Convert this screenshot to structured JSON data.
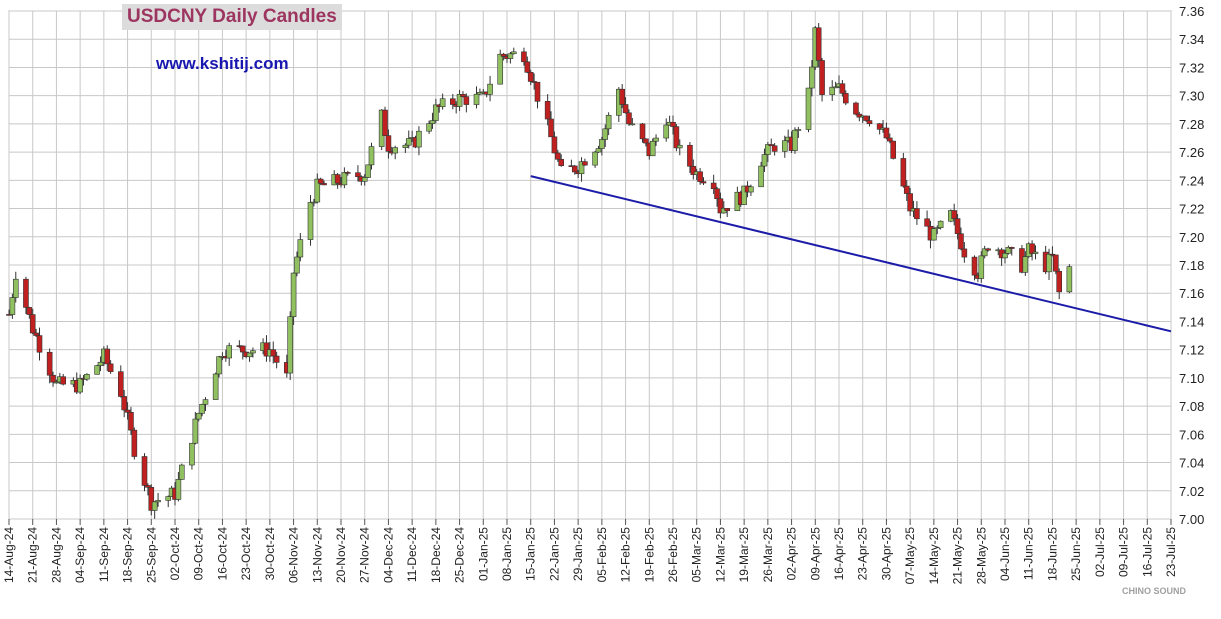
{
  "chart_data": {
    "type": "candlestick",
    "title": "USDCNY Daily Candles",
    "source_text": "www.kshitij.com",
    "ylim": [
      7.0,
      7.36
    ],
    "y_ticks": [
      "7.36",
      "7.34",
      "7.32",
      "7.30",
      "7.28",
      "7.26",
      "7.24",
      "7.22",
      "7.20",
      "7.18",
      "7.16",
      "7.14",
      "7.12",
      "7.10",
      "7.08",
      "7.06",
      "7.04",
      "7.02",
      "7.00"
    ],
    "x_ticks": [
      "14-Aug-24",
      "21-Aug-24",
      "28-Aug-24",
      "04-Sep-24",
      "11-Sep-24",
      "18-Sep-24",
      "25-Sep-24",
      "02-Oct-24",
      "09-Oct-24",
      "16-Oct-24",
      "23-Oct-24",
      "30-Oct-24",
      "06-Nov-24",
      "13-Nov-24",
      "20-Nov-24",
      "27-Nov-24",
      "04-Dec-24",
      "11-Dec-24",
      "18-Dec-24",
      "25-Dec-24",
      "01-Jan-25",
      "08-Jan-25",
      "15-Jan-25",
      "22-Jan-25",
      "29-Jan-25",
      "05-Feb-25",
      "12-Feb-25",
      "19-Feb-25",
      "26-Feb-25",
      "05-Mar-25",
      "12-Mar-25",
      "19-Mar-25",
      "26-Mar-25",
      "02-Apr-25",
      "09-Apr-25",
      "16-Apr-25",
      "23-Apr-25",
      "30-Apr-25",
      "07-May-25",
      "14-May-25",
      "21-May-25",
      "28-May-25",
      "04-Jun-25",
      "11-Jun-25",
      "18-Jun-25",
      "25-Jun-25",
      "02-Jul-25",
      "09-Jul-25",
      "16-Jul-25",
      "23-Jul-25"
    ],
    "grid": true,
    "colors": {
      "up": "#90c060",
      "down": "#c02020",
      "trendline": "#1c1ca8",
      "grid": "#c8c8c8"
    },
    "trendline": {
      "start": {
        "date": "15-Jan-25",
        "value": 7.243
      },
      "end": {
        "date": "23-Jul-25",
        "value": 7.133
      }
    },
    "approx_close_path": [
      {
        "date": "14-Aug-24",
        "close": 7.145
      },
      {
        "date": "16-Aug-24",
        "close": 7.175
      },
      {
        "date": "21-Aug-24",
        "close": 7.135
      },
      {
        "date": "28-Aug-24",
        "close": 7.095
      },
      {
        "date": "04-Sep-24",
        "close": 7.095
      },
      {
        "date": "11-Sep-24",
        "close": 7.115
      },
      {
        "date": "16-Sep-24",
        "close": 7.09
      },
      {
        "date": "20-Sep-24",
        "close": 7.05
      },
      {
        "date": "25-Sep-24",
        "close": 7.012
      },
      {
        "date": "02-Oct-24",
        "close": 7.018
      },
      {
        "date": "09-Oct-24",
        "close": 7.075
      },
      {
        "date": "16-Oct-24",
        "close": 7.12
      },
      {
        "date": "23-Oct-24",
        "close": 7.12
      },
      {
        "date": "30-Oct-24",
        "close": 7.12
      },
      {
        "date": "04-Nov-24",
        "close": 7.1
      },
      {
        "date": "06-Nov-24",
        "close": 7.175
      },
      {
        "date": "11-Nov-24",
        "close": 7.225
      },
      {
        "date": "13-Nov-24",
        "close": 7.235
      },
      {
        "date": "20-Nov-24",
        "close": 7.24
      },
      {
        "date": "27-Nov-24",
        "close": 7.245
      },
      {
        "date": "02-Dec-24",
        "close": 7.285
      },
      {
        "date": "04-Dec-24",
        "close": 7.265
      },
      {
        "date": "11-Dec-24",
        "close": 7.265
      },
      {
        "date": "18-Dec-24",
        "close": 7.29
      },
      {
        "date": "25-Dec-24",
        "close": 7.298
      },
      {
        "date": "01-Jan-25",
        "close": 7.298
      },
      {
        "date": "06-Jan-25",
        "close": 7.328
      },
      {
        "date": "13-Jan-25",
        "close": 7.33
      },
      {
        "date": "17-Jan-25",
        "close": 7.3
      },
      {
        "date": "21-Jan-25",
        "close": 7.27
      },
      {
        "date": "24-Jan-25",
        "close": 7.245
      },
      {
        "date": "29-Jan-25",
        "close": 7.25
      },
      {
        "date": "05-Feb-25",
        "close": 7.27
      },
      {
        "date": "10-Feb-25",
        "close": 7.305
      },
      {
        "date": "13-Feb-25",
        "close": 7.28
      },
      {
        "date": "19-Feb-25",
        "close": 7.26
      },
      {
        "date": "24-Feb-25",
        "close": 7.285
      },
      {
        "date": "28-Feb-25",
        "close": 7.26
      },
      {
        "date": "05-Mar-25",
        "close": 7.245
      },
      {
        "date": "10-Mar-25",
        "close": 7.24
      },
      {
        "date": "12-Mar-25",
        "close": 7.22
      },
      {
        "date": "19-Mar-25",
        "close": 7.23
      },
      {
        "date": "24-Mar-25",
        "close": 7.255
      },
      {
        "date": "28-Mar-25",
        "close": 7.265
      },
      {
        "date": "02-Apr-25",
        "close": 7.265
      },
      {
        "date": "07-Apr-25",
        "close": 7.3
      },
      {
        "date": "09-Apr-25",
        "close": 7.345
      },
      {
        "date": "11-Apr-25",
        "close": 7.3
      },
      {
        "date": "16-Apr-25",
        "close": 7.305
      },
      {
        "date": "21-Apr-25",
        "close": 7.29
      },
      {
        "date": "25-Apr-25",
        "close": 7.285
      },
      {
        "date": "30-Apr-25",
        "close": 7.27
      },
      {
        "date": "07-May-25",
        "close": 7.22
      },
      {
        "date": "12-May-25",
        "close": 7.205
      },
      {
        "date": "14-May-25",
        "close": 7.2
      },
      {
        "date": "19-May-25",
        "close": 7.215
      },
      {
        "date": "23-May-25",
        "close": 7.19
      },
      {
        "date": "27-May-25",
        "close": 7.175
      },
      {
        "date": "30-May-25",
        "close": 7.195
      },
      {
        "date": "04-Jun-25",
        "close": 7.19
      },
      {
        "date": "09-Jun-25",
        "close": 7.18
      },
      {
        "date": "11-Jun-25",
        "close": 7.19
      },
      {
        "date": "16-Jun-25",
        "close": 7.18
      },
      {
        "date": "18-Jun-25",
        "close": 7.185
      },
      {
        "date": "20-Jun-25",
        "close": 7.16
      },
      {
        "date": "23-Jun-25",
        "close": 7.178
      }
    ]
  },
  "watermark": "CHINO SOUND"
}
